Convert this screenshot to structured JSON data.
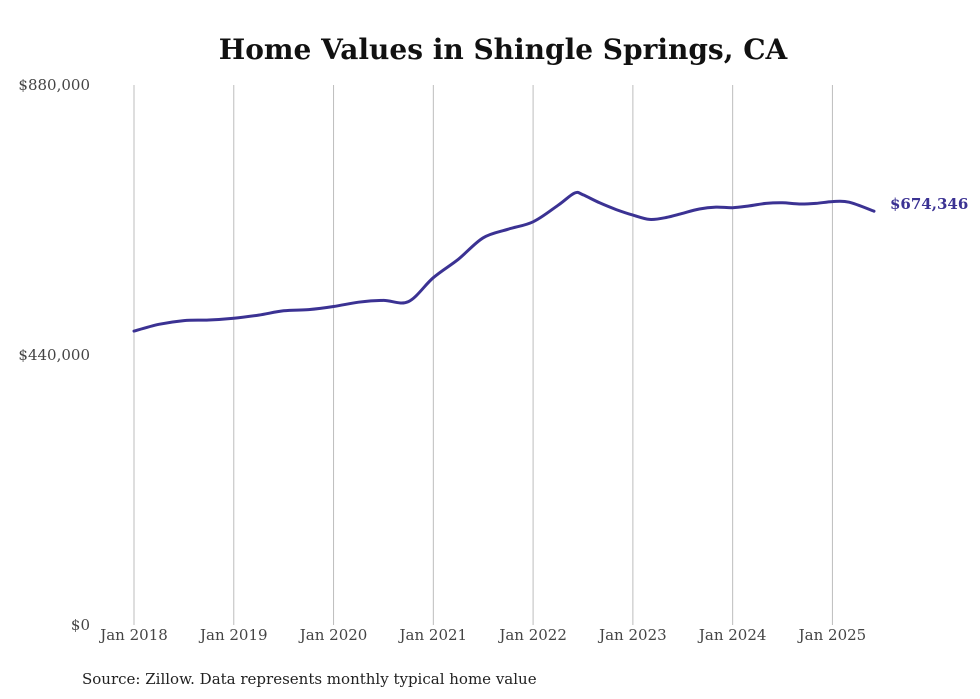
{
  "chart_data": {
    "type": "line",
    "title": "Home Values in Shingle Springs, CA",
    "source": "Source: Zillow. Data represents monthly typical home value",
    "xlabel": "",
    "ylabel": "",
    "x_ticks": [
      "Jan 2018",
      "Jan 2019",
      "Jan 2020",
      "Jan 2021",
      "Jan 2022",
      "Jan 2023",
      "Jan 2024",
      "Jan 2025"
    ],
    "y_ticks": [
      "$0",
      "$440,000",
      "$880,000"
    ],
    "ylim": [
      0,
      880000
    ],
    "xlim": [
      "2018-01",
      "2025-06"
    ],
    "grid": "vertical",
    "line_color": "#3b3293",
    "end_label": "$674,346",
    "series": [
      {
        "x": [
          "2018-01",
          "2018-04",
          "2018-07",
          "2018-10",
          "2019-01",
          "2019-04",
          "2019-07",
          "2019-10",
          "2020-01",
          "2020-04",
          "2020-07",
          "2020-10",
          "2021-01",
          "2021-04",
          "2021-07",
          "2021-10",
          "2022-01",
          "2022-04",
          "2022-06",
          "2022-07",
          "2022-09",
          "2022-11",
          "2023-01",
          "2023-03",
          "2023-05",
          "2023-07",
          "2023-09",
          "2023-11",
          "2024-01",
          "2024-03",
          "2024-05",
          "2024-07",
          "2024-09",
          "2024-11",
          "2025-01",
          "2025-03",
          "2025-06"
        ],
        "values": [
          479000,
          490000,
          496000,
          497000,
          500000,
          505000,
          512000,
          514000,
          519000,
          526000,
          529000,
          527000,
          566000,
          596000,
          631000,
          645000,
          657000,
          684000,
          704000,
          701000,
          688000,
          677000,
          668000,
          661000,
          664000,
          671000,
          678000,
          681000,
          680000,
          683000,
          687000,
          688000,
          686000,
          687000,
          690000,
          689000,
          674346
        ]
      }
    ]
  }
}
